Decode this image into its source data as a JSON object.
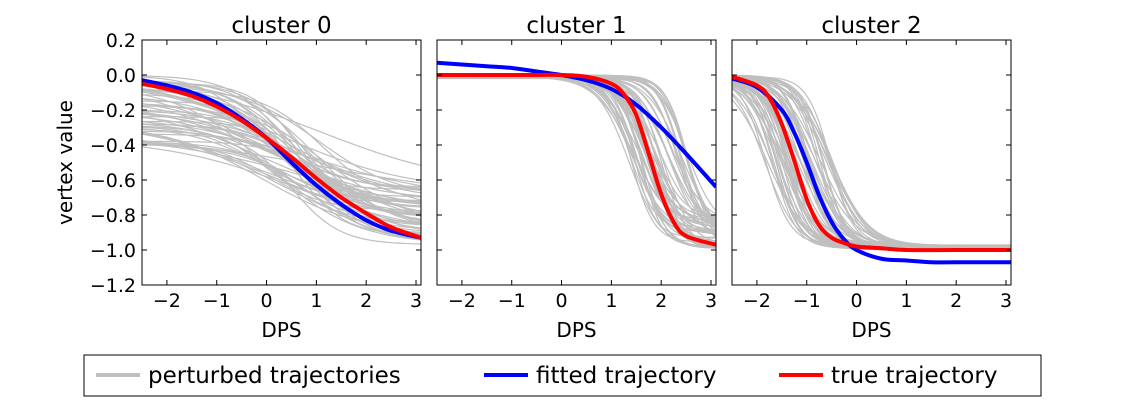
{
  "chart_data": [
    {
      "type": "line",
      "title": "cluster 0",
      "xlabel": "DPS",
      "ylabel": "vertex value",
      "xlim": [
        -2.5,
        3.1
      ],
      "ylim": [
        -1.2,
        0.2
      ],
      "xticks": [
        -2,
        -1,
        0,
        1,
        2,
        3
      ],
      "xtick_labels": [
        "−2",
        "−1",
        "0",
        "1",
        "2",
        "3"
      ],
      "yticks": [
        0.2,
        0.0,
        -0.2,
        -0.4,
        -0.6,
        -0.8,
        -1.0,
        -1.2
      ],
      "ytick_labels": [
        "0.2",
        "0.0",
        "−0.2",
        "−0.4",
        "−0.6",
        "−0.8",
        "−1.0",
        "−1.2"
      ],
      "grid": false,
      "series": [
        {
          "name": "fitted trajectory",
          "color": "#0000ff",
          "x": [
            -2.5,
            -2,
            -1.5,
            -1,
            -0.5,
            0,
            0.5,
            1,
            1.5,
            2,
            2.5,
            3.1
          ],
          "y": [
            -0.03,
            -0.06,
            -0.1,
            -0.16,
            -0.25,
            -0.36,
            -0.5,
            -0.63,
            -0.74,
            -0.83,
            -0.89,
            -0.93
          ]
        },
        {
          "name": "true trajectory",
          "color": "#ff0000",
          "x": [
            -2.5,
            -2,
            -1.5,
            -1,
            -0.5,
            0,
            0.5,
            1,
            1.5,
            2,
            2.5,
            3.1
          ],
          "y": [
            -0.05,
            -0.08,
            -0.12,
            -0.18,
            -0.26,
            -0.36,
            -0.47,
            -0.59,
            -0.7,
            -0.79,
            -0.87,
            -0.93
          ]
        }
      ],
      "perturbed": {
        "name": "perturbed trajectories",
        "color": "#bfbfbf",
        "count": 60,
        "start_range": [
          -0.4,
          0.0
        ],
        "end_range": [
          -0.97,
          -0.63
        ],
        "center_range": [
          -0.2,
          1.2
        ],
        "slope_range": [
          0.6,
          2.2
        ]
      }
    },
    {
      "type": "line",
      "title": "cluster 1",
      "xlabel": "DPS",
      "ylabel": "",
      "xlim": [
        -2.5,
        3.1
      ],
      "ylim": [
        -1.2,
        0.2
      ],
      "xticks": [
        -2,
        -1,
        0,
        1,
        2,
        3
      ],
      "xtick_labels": [
        "−2",
        "−1",
        "0",
        "1",
        "2",
        "3"
      ],
      "grid": false,
      "series": [
        {
          "name": "fitted trajectory",
          "color": "#0000ff",
          "x": [
            -2.5,
            -2,
            -1.5,
            -1,
            -0.5,
            0,
            0.5,
            1,
            1.5,
            2,
            2.5,
            3.1
          ],
          "y": [
            0.07,
            0.06,
            0.05,
            0.04,
            0.02,
            0.0,
            -0.03,
            -0.08,
            -0.17,
            -0.3,
            -0.45,
            -0.64
          ]
        },
        {
          "name": "true trajectory",
          "color": "#ff0000",
          "x": [
            -2.5,
            -2,
            -1.5,
            -1,
            -0.5,
            0,
            0.5,
            1,
            1.25,
            1.5,
            1.75,
            2,
            2.25,
            2.5,
            3.1
          ],
          "y": [
            0.0,
            0.0,
            0.0,
            0.0,
            0.0,
            0.0,
            -0.01,
            -0.05,
            -0.11,
            -0.23,
            -0.45,
            -0.68,
            -0.84,
            -0.92,
            -0.97
          ]
        }
      ],
      "perturbed": {
        "name": "perturbed trajectories",
        "color": "#bfbfbf",
        "count": 60,
        "start_range": [
          -0.02,
          0.0
        ],
        "end_range": [
          -1.0,
          -0.82
        ],
        "center_range": [
          1.35,
          2.55
        ],
        "slope_range": [
          2.5,
          5.0
        ]
      }
    },
    {
      "type": "line",
      "title": "cluster 2",
      "xlabel": "DPS",
      "ylabel": "",
      "xlim": [
        -2.5,
        3.1
      ],
      "ylim": [
        -1.2,
        0.2
      ],
      "xticks": [
        -2,
        -1,
        0,
        1,
        2,
        3
      ],
      "xtick_labels": [
        "−2",
        "−1",
        "0",
        "1",
        "2",
        "3"
      ],
      "grid": false,
      "series": [
        {
          "name": "fitted trajectory",
          "color": "#0000ff",
          "x": [
            -2.5,
            -2,
            -1.5,
            -1.25,
            -1,
            -0.75,
            -0.5,
            -0.25,
            0,
            0.5,
            1,
            1.5,
            2,
            3.1
          ],
          "y": [
            -0.02,
            -0.07,
            -0.2,
            -0.33,
            -0.5,
            -0.69,
            -0.84,
            -0.94,
            -1.0,
            -1.05,
            -1.06,
            -1.07,
            -1.07,
            -1.07
          ]
        },
        {
          "name": "true trajectory",
          "color": "#ff0000",
          "x": [
            -2.5,
            -2,
            -1.75,
            -1.5,
            -1.25,
            -1,
            -0.75,
            -0.5,
            -0.25,
            0,
            0.5,
            1,
            2,
            3.1
          ],
          "y": [
            -0.01,
            -0.06,
            -0.13,
            -0.28,
            -0.49,
            -0.71,
            -0.86,
            -0.93,
            -0.96,
            -0.98,
            -0.99,
            -1.0,
            -1.0,
            -1.0
          ]
        }
      ],
      "perturbed": {
        "name": "perturbed trajectories",
        "color": "#bfbfbf",
        "count": 60,
        "start_range": [
          -0.02,
          0.0
        ],
        "end_range": [
          -1.0,
          -0.97
        ],
        "center_range": [
          -1.85,
          -0.45
        ],
        "slope_range": [
          2.2,
          4.5
        ]
      }
    }
  ],
  "legend": {
    "placement": "bottom-center",
    "entries": [
      {
        "label": "perturbed trajectories",
        "color": "#bfbfbf"
      },
      {
        "label": "fitted trajectory",
        "color": "#0000ff"
      },
      {
        "label": "true trajectory",
        "color": "#ff0000"
      }
    ]
  }
}
